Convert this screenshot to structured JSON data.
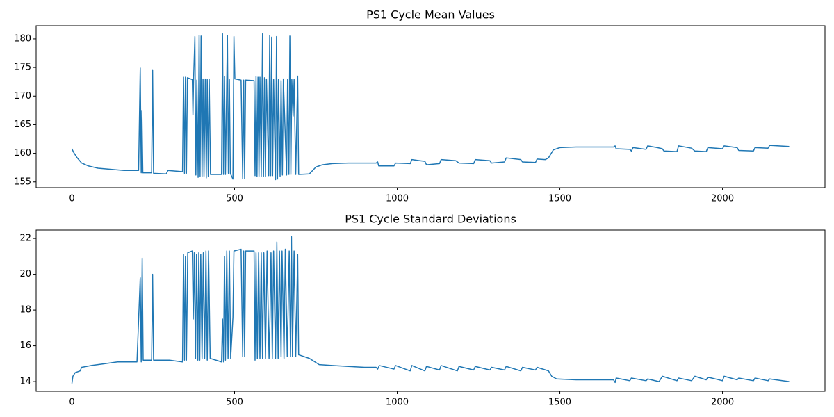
{
  "chart_data": [
    {
      "type": "line",
      "title": "PS1 Cycle Mean Values",
      "color": "#1f77b4",
      "x": [
        0,
        5,
        15,
        30,
        50,
        80,
        120,
        160,
        205,
        210,
        213,
        215,
        218,
        245,
        248,
        251,
        290,
        295,
        340,
        343,
        346,
        349,
        352,
        355,
        370,
        372,
        374,
        378,
        381,
        384,
        388,
        391,
        394,
        397,
        400,
        403,
        406,
        410,
        413,
        416,
        419,
        422,
        426,
        460,
        463,
        466,
        469,
        472,
        478,
        481,
        484,
        487,
        495,
        498,
        501,
        520,
        525,
        528,
        531,
        534,
        560,
        563,
        566,
        569,
        572,
        575,
        578,
        582,
        586,
        589,
        592,
        595,
        598,
        605,
        608,
        611,
        614,
        617,
        620,
        626,
        629,
        632,
        635,
        640,
        643,
        647,
        650,
        660,
        663,
        667,
        670,
        673,
        676,
        680,
        683,
        688,
        694,
        697,
        730,
        750,
        770,
        800,
        850,
        900,
        935,
        940,
        943,
        990,
        995,
        1040,
        1045,
        1070,
        1085,
        1090,
        1130,
        1135,
        1180,
        1190,
        1235,
        1240,
        1285,
        1290,
        1330,
        1335,
        1380,
        1385,
        1425,
        1430,
        1455,
        1465,
        1480,
        1500,
        1550,
        1600,
        1665,
        1670,
        1673,
        1715,
        1720,
        1725,
        1765,
        1770,
        1800,
        1815,
        1820,
        1860,
        1865,
        1905,
        1915,
        1950,
        1955,
        2000,
        2005,
        2045,
        2050,
        2095,
        2100,
        2140,
        2145,
        2205
      ],
      "values": [
        160.8,
        160.2,
        159.3,
        158.3,
        157.8,
        157.4,
        157.2,
        157.0,
        157.0,
        174.9,
        156.6,
        167.5,
        156.6,
        156.6,
        174.6,
        156.5,
        156.4,
        157.0,
        156.8,
        173.3,
        156.5,
        173.3,
        156.5,
        173.2,
        172.9,
        166.7,
        172.9,
        180.4,
        156.2,
        172.8,
        155.8,
        180.6,
        156.0,
        180.5,
        156.0,
        173.0,
        156.0,
        173.0,
        155.7,
        172.9,
        156.0,
        173.0,
        156.3,
        156.3,
        180.9,
        156.3,
        173.4,
        156.3,
        180.6,
        156.5,
        172.9,
        156.5,
        155.5,
        180.4,
        173.0,
        172.8,
        155.6,
        172.8,
        155.6,
        172.8,
        172.7,
        156.1,
        173.4,
        156.0,
        173.3,
        156.0,
        173.3,
        156.0,
        180.9,
        156.0,
        173.2,
        156.0,
        173.0,
        156.1,
        180.6,
        156.1,
        180.3,
        156.1,
        172.9,
        155.4,
        180.4,
        155.5,
        172.9,
        156.0,
        172.7,
        156.2,
        173.0,
        156.2,
        172.9,
        156.3,
        180.5,
        156.3,
        172.9,
        166.5,
        172.9,
        156.3,
        173.5,
        156.3,
        156.4,
        157.6,
        158.0,
        158.2,
        158.3,
        158.3,
        158.3,
        158.5,
        157.8,
        157.8,
        158.3,
        158.2,
        158.9,
        158.7,
        158.6,
        158.0,
        158.2,
        158.9,
        158.7,
        158.3,
        158.2,
        158.9,
        158.7,
        158.3,
        158.5,
        159.2,
        158.9,
        158.5,
        158.4,
        159.0,
        158.9,
        159.2,
        160.6,
        161.0,
        161.1,
        161.1,
        161.1,
        161.3,
        160.8,
        160.7,
        160.4,
        161.0,
        160.7,
        161.3,
        161.0,
        160.8,
        160.4,
        160.3,
        161.3,
        160.9,
        160.4,
        160.3,
        161.0,
        160.8,
        161.3,
        161.0,
        160.5,
        160.4,
        161.0,
        160.9,
        161.4,
        161.2
      ],
      "xlim": [
        -110,
        2315
      ],
      "xticks": [
        0,
        500,
        1000,
        1500,
        2000
      ],
      "ylim": [
        154.0,
        182.3
      ],
      "yticks": [
        155,
        160,
        165,
        170,
        175,
        180
      ]
    },
    {
      "type": "line",
      "title": "PS1 Cycle Standard Deviations",
      "color": "#1f77b4",
      "x": [
        0,
        3,
        10,
        25,
        30,
        60,
        100,
        140,
        200,
        210,
        213,
        216,
        219,
        245,
        248,
        251,
        300,
        340,
        343,
        346,
        349,
        352,
        356,
        370,
        373,
        376,
        380,
        383,
        387,
        390,
        393,
        396,
        400,
        404,
        408,
        412,
        416,
        420,
        425,
        460,
        463,
        466,
        469,
        472,
        476,
        480,
        484,
        488,
        495,
        498,
        520,
        525,
        528,
        531,
        534,
        560,
        563,
        566,
        570,
        574,
        578,
        582,
        586,
        590,
        595,
        600,
        606,
        609,
        612,
        616,
        620,
        626,
        630,
        634,
        638,
        643,
        646,
        652,
        656,
        662,
        668,
        672,
        675,
        678,
        683,
        688,
        694,
        697,
        730,
        760,
        800,
        850,
        900,
        935,
        940,
        945,
        990,
        995,
        1040,
        1045,
        1085,
        1090,
        1130,
        1135,
        1185,
        1190,
        1235,
        1240,
        1285,
        1290,
        1330,
        1335,
        1380,
        1385,
        1425,
        1430,
        1465,
        1475,
        1490,
        1550,
        1600,
        1665,
        1670,
        1673,
        1715,
        1720,
        1765,
        1770,
        1805,
        1815,
        1860,
        1865,
        1905,
        1915,
        1950,
        1955,
        2000,
        2005,
        2045,
        2050,
        2095,
        2100,
        2140,
        2145,
        2205
      ],
      "values": [
        13.9,
        14.3,
        14.5,
        14.6,
        14.8,
        14.9,
        15.0,
        15.1,
        15.1,
        19.8,
        15.1,
        20.9,
        15.2,
        15.2,
        20.0,
        15.2,
        15.2,
        15.1,
        21.1,
        15.2,
        21.0,
        15.2,
        21.2,
        21.3,
        17.5,
        21.2,
        15.3,
        21.1,
        15.2,
        21.2,
        15.2,
        21.1,
        15.3,
        21.2,
        15.3,
        21.3,
        15.2,
        21.3,
        15.3,
        15.1,
        17.5,
        15.1,
        21.0,
        15.2,
        21.3,
        15.3,
        21.3,
        15.3,
        17.6,
        21.3,
        21.4,
        15.4,
        21.3,
        15.4,
        21.3,
        21.3,
        15.2,
        21.2,
        15.3,
        21.2,
        15.3,
        21.2,
        15.3,
        21.2,
        15.3,
        21.3,
        15.3,
        17.6,
        21.2,
        15.3,
        21.3,
        15.3,
        21.8,
        15.3,
        21.3,
        15.4,
        21.3,
        15.3,
        21.4,
        15.4,
        21.3,
        15.4,
        22.1,
        15.4,
        21.3,
        15.4,
        21.1,
        15.5,
        15.3,
        14.95,
        14.9,
        14.85,
        14.8,
        14.8,
        14.7,
        14.9,
        14.7,
        14.9,
        14.6,
        14.9,
        14.6,
        14.85,
        14.65,
        14.9,
        14.6,
        14.85,
        14.65,
        14.85,
        14.65,
        14.8,
        14.65,
        14.85,
        14.6,
        14.8,
        14.65,
        14.8,
        14.6,
        14.3,
        14.15,
        14.1,
        14.1,
        14.1,
        13.95,
        14.2,
        14.05,
        14.2,
        14.05,
        14.15,
        14.0,
        14.3,
        14.05,
        14.2,
        14.05,
        14.3,
        14.1,
        14.25,
        14.05,
        14.3,
        14.1,
        14.2,
        14.05,
        14.2,
        14.05,
        14.15,
        14.0
      ],
      "xlim": [
        -110,
        2315
      ],
      "xticks": [
        0,
        500,
        1000,
        1500,
        2000
      ],
      "ylim": [
        13.46,
        22.47
      ],
      "yticks": [
        14,
        16,
        18,
        20,
        22
      ]
    }
  ]
}
